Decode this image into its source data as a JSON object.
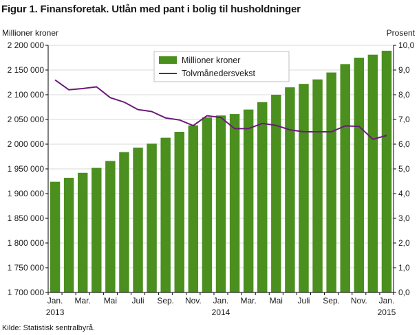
{
  "title": "Figur 1. Finansforetak. Utlån med pant i bolig til husholdninger",
  "source": "Kilde: Statistisk sentralbyrå.",
  "colors": {
    "bars": "#4b8f1f",
    "line": "#6a1a7a",
    "grid": "#d9d9d9",
    "axis": "#000000"
  },
  "chart_data": {
    "type": "bar",
    "categories": [
      "2013-01",
      "2013-02",
      "2013-03",
      "2013-04",
      "2013-05",
      "2013-06",
      "2013-07",
      "2013-08",
      "2013-09",
      "2013-10",
      "2013-11",
      "2013-12",
      "2014-01",
      "2014-02",
      "2014-03",
      "2014-04",
      "2014-05",
      "2014-06",
      "2014-07",
      "2014-08",
      "2014-09",
      "2014-10",
      "2014-11",
      "2014-12",
      "2015-01"
    ],
    "x_tick_labels": [
      "Jan.",
      "Mar.",
      "Mai",
      "Juli",
      "Sep.",
      "Nov.",
      "Jan.",
      "Mar.",
      "Mai",
      "Juli",
      "Sep.",
      "Nov.",
      "Jan."
    ],
    "year_labels": [
      "2013",
      "2014",
      "2015"
    ],
    "ylabel_left": "Millioner  kroner",
    "ylabel_right": "Prosent",
    "ylim_left": [
      1700000,
      2200000
    ],
    "ylim_right": [
      0,
      10
    ],
    "yticks_left": [
      "1 700 000",
      "1 750 000",
      "1 800 000",
      "1 850 000",
      "1 900 000",
      "1 950 000",
      "2 000 000",
      "2 050 000",
      "2 100 000",
      "2 150 000",
      "2 200 000"
    ],
    "yticks_right": [
      "0,0",
      "1,0",
      "2,0",
      "3,0",
      "4,0",
      "5,0",
      "6,0",
      "7,0",
      "8,0",
      "9,0",
      "10,0"
    ],
    "grid": true,
    "legend_position": "top-center",
    "series": [
      {
        "name": "Millioner kroner",
        "type": "bar",
        "axis": "left",
        "values": [
          1924000,
          1932000,
          1942000,
          1952000,
          1966000,
          1984000,
          1993000,
          2001000,
          2013000,
          2025000,
          2038000,
          2054000,
          2058000,
          2061000,
          2070000,
          2085000,
          2100000,
          2115000,
          2122000,
          2131000,
          2145000,
          2162000,
          2175000,
          2181000,
          2189000
        ]
      },
      {
        "name": "Tolvmånedersvekst",
        "type": "line",
        "axis": "right",
        "values": [
          8.6,
          8.2,
          8.25,
          8.32,
          7.88,
          7.7,
          7.4,
          7.32,
          7.06,
          6.98,
          6.75,
          7.15,
          7.08,
          6.63,
          6.63,
          6.84,
          6.76,
          6.58,
          6.5,
          6.5,
          6.5,
          6.74,
          6.72,
          6.2,
          6.35
        ]
      }
    ]
  }
}
